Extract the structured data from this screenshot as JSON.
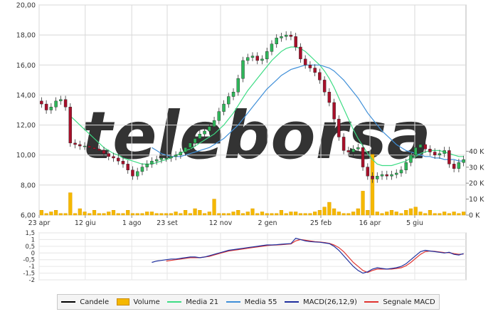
{
  "chart_data": [
    {
      "type": "candlestick",
      "title": "",
      "watermark": "teleborsa",
      "x_tick_labels": [
        "23 apr",
        "12 giu",
        "1 ago",
        "23 set",
        "12 nov",
        "2 gen",
        "25 feb",
        "16 apr",
        "5 giu"
      ],
      "y_tick_labels": [
        "6,00",
        "8,00",
        "10,00",
        "12,00",
        "14,00",
        "16,00",
        "18,00",
        "20,00"
      ],
      "ylim": [
        6,
        20
      ],
      "volume_tick_labels": [
        "0 K",
        "10 K",
        "20 K",
        "30 K",
        "40 K"
      ],
      "volume_ylim": [
        0,
        50
      ],
      "grid": true,
      "closes": [
        13.4,
        13.0,
        13.2,
        13.6,
        13.7,
        13.2,
        10.8,
        10.7,
        10.6,
        10.6,
        10.5,
        10.4,
        10.3,
        10.1,
        9.9,
        9.8,
        9.6,
        9.4,
        9.0,
        8.6,
        8.9,
        9.2,
        9.4,
        9.6,
        9.7,
        9.8,
        9.8,
        9.9,
        10.0,
        10.2,
        10.5,
        10.8,
        11.1,
        11.4,
        11.6,
        11.9,
        12.3,
        12.9,
        13.4,
        13.9,
        14.2,
        15.1,
        16.3,
        16.5,
        16.6,
        16.3,
        16.4,
        16.9,
        17.4,
        17.8,
        17.9,
        18.0,
        17.9,
        17.2,
        16.4,
        16.0,
        15.8,
        15.5,
        15.0,
        14.2,
        13.5,
        12.4,
        11.2,
        10.3,
        10.2,
        10.4,
        10.5,
        9.2,
        8.6,
        8.4,
        8.6,
        8.7,
        8.6,
        8.7,
        8.8,
        9.0,
        9.5,
        10.0,
        10.5,
        10.7,
        10.4,
        10.2,
        10.0,
        10.1,
        10.3,
        9.4,
        9.1,
        9.5,
        9.7
      ],
      "volumes": [
        3,
        1,
        2,
        3,
        1,
        1,
        14,
        1,
        4,
        2,
        1,
        3,
        1,
        1,
        2,
        3,
        1,
        1,
        3,
        1,
        1,
        1,
        2,
        2,
        1,
        1,
        1,
        1,
        2,
        1,
        3,
        1,
        4,
        3,
        1,
        2,
        10,
        1,
        1,
        1,
        2,
        3,
        1,
        2,
        4,
        1,
        2,
        1,
        1,
        1,
        3,
        1,
        2,
        2,
        1,
        1,
        1,
        2,
        3,
        5,
        8,
        4,
        2,
        1,
        1,
        2,
        4,
        15,
        3,
        38,
        2,
        1,
        2,
        3,
        2,
        1,
        3,
        4,
        5,
        2,
        1,
        3,
        1,
        1,
        2,
        1,
        2,
        1,
        2
      ],
      "series": [
        {
          "name": "Media 21",
          "values": [
            null,
            null,
            null,
            null,
            null,
            null,
            12.6,
            12.3,
            12.0,
            11.7,
            11.4,
            11.1,
            10.8,
            10.5,
            10.3,
            10.1,
            10.0,
            9.8,
            9.7,
            9.6,
            9.5,
            9.4,
            9.4,
            9.4,
            9.5,
            9.6,
            9.7,
            9.8,
            10.0,
            10.1,
            10.3,
            10.4,
            10.6,
            10.8,
            11.0,
            11.2,
            11.4,
            11.7,
            12.0,
            12.4,
            12.8,
            13.3,
            13.8,
            14.3,
            14.7,
            15.1,
            15.5,
            15.9,
            16.3,
            16.6,
            16.9,
            17.1,
            17.2,
            17.2,
            17.1,
            16.9,
            16.6,
            16.3,
            16.0,
            15.6,
            15.1,
            14.5,
            13.8,
            13.1,
            12.4,
            11.7,
            11.1,
            10.6,
            10.1,
            9.7,
            9.4,
            9.3,
            9.3,
            9.3,
            9.4,
            9.5,
            9.6,
            9.8,
            9.9,
            10.1,
            10.2,
            10.3,
            10.3,
            10.3,
            10.2,
            10.1,
            10.0,
            9.9,
            9.9
          ]
        },
        {
          "name": "Media 55",
          "values": [
            null,
            null,
            null,
            null,
            null,
            null,
            null,
            null,
            null,
            null,
            null,
            null,
            null,
            null,
            null,
            null,
            null,
            null,
            null,
            null,
            null,
            null,
            null,
            10.5,
            10.3,
            10.1,
            10.0,
            9.9,
            9.9,
            9.9,
            10.0,
            10.1,
            10.2,
            10.3,
            10.4,
            10.5,
            10.7,
            10.9,
            11.1,
            11.4,
            11.7,
            12.0,
            12.4,
            12.8,
            13.2,
            13.6,
            14.0,
            14.4,
            14.7,
            15.0,
            15.3,
            15.5,
            15.7,
            15.8,
            15.9,
            16.0,
            16.0,
            16.0,
            16.0,
            15.9,
            15.8,
            15.6,
            15.3,
            15.0,
            14.6,
            14.2,
            13.8,
            13.3,
            12.8,
            12.4,
            12.0,
            11.6,
            11.3,
            11.0,
            10.7,
            10.5,
            10.3,
            10.2,
            10.1,
            10.0,
            9.9,
            9.9,
            9.8,
            9.8,
            9.7,
            9.7,
            9.7,
            9.6,
            9.6
          ]
        }
      ]
    },
    {
      "type": "line",
      "title": "",
      "y_tick_labels": [
        "-2",
        "-1,5",
        "-1",
        "-0,5",
        "0",
        "0,5",
        "1",
        "1,5"
      ],
      "ylim": [
        -2,
        1.5
      ],
      "grid": true,
      "series": [
        {
          "name": "MACD(26,12,9)",
          "values": [
            null,
            null,
            null,
            null,
            null,
            null,
            null,
            null,
            null,
            null,
            null,
            null,
            null,
            null,
            null,
            null,
            null,
            null,
            null,
            null,
            null,
            null,
            null,
            -0.7,
            -0.6,
            -0.55,
            -0.5,
            -0.45,
            -0.45,
            -0.4,
            -0.35,
            -0.3,
            -0.3,
            -0.35,
            -0.3,
            -0.2,
            -0.1,
            0.0,
            0.1,
            0.2,
            0.25,
            0.3,
            0.35,
            0.4,
            0.45,
            0.5,
            0.55,
            0.6,
            0.6,
            0.62,
            0.65,
            0.68,
            0.7,
            1.1,
            1.0,
            0.9,
            0.85,
            0.82,
            0.8,
            0.75,
            0.7,
            0.5,
            0.2,
            -0.2,
            -0.6,
            -1.0,
            -1.3,
            -1.5,
            -1.4,
            -1.2,
            -1.1,
            -1.15,
            -1.2,
            -1.15,
            -1.1,
            -1.0,
            -0.8,
            -0.5,
            -0.2,
            0.1,
            0.2,
            0.15,
            0.1,
            0.05,
            0.0,
            0.05,
            -0.1,
            -0.15,
            -0.05
          ]
        },
        {
          "name": "Segnale MACD",
          "values": [
            null,
            null,
            null,
            null,
            null,
            null,
            null,
            null,
            null,
            null,
            null,
            null,
            null,
            null,
            null,
            null,
            null,
            null,
            null,
            null,
            null,
            null,
            null,
            null,
            null,
            null,
            -0.6,
            -0.55,
            -0.5,
            -0.45,
            -0.4,
            -0.35,
            -0.35,
            -0.35,
            -0.3,
            -0.25,
            -0.15,
            -0.05,
            0.05,
            0.15,
            0.2,
            0.25,
            0.3,
            0.35,
            0.4,
            0.45,
            0.5,
            0.55,
            0.58,
            0.6,
            0.62,
            0.65,
            0.68,
            0.9,
            1.0,
            0.95,
            0.9,
            0.85,
            0.82,
            0.78,
            0.72,
            0.6,
            0.4,
            0.1,
            -0.3,
            -0.7,
            -1.0,
            -1.3,
            -1.45,
            -1.3,
            -1.2,
            -1.2,
            -1.2,
            -1.2,
            -1.15,
            -1.1,
            -0.95,
            -0.7,
            -0.4,
            -0.1,
            0.1,
            0.15,
            0.12,
            0.08,
            0.03,
            0.02,
            -0.05,
            -0.1,
            -0.08
          ]
        }
      ]
    }
  ],
  "legend": [
    {
      "label": "Candele",
      "kind": "line",
      "color": "#000000"
    },
    {
      "label": "Volume",
      "kind": "box",
      "color": "#f5b800"
    },
    {
      "label": "Media 21",
      "kind": "line",
      "color": "#3ddc84"
    },
    {
      "label": "Media 55",
      "kind": "line",
      "color": "#3f8fd8"
    },
    {
      "label": "MACD(26,12,9)",
      "kind": "line",
      "color": "#1f2f9e"
    },
    {
      "label": "Segnale MACD",
      "kind": "line",
      "color": "#e0332f"
    }
  ],
  "colors": {
    "up_candle": "#2fb65a",
    "down_candle": "#a8102a",
    "volume": "#f5b800",
    "grid": "#d8d8d8",
    "watermark": "#e9e9e9"
  }
}
